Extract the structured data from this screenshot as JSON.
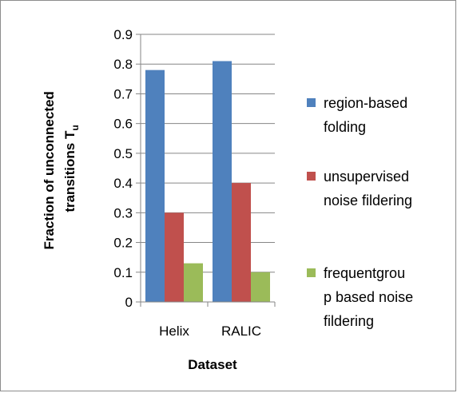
{
  "chart_data": {
    "type": "bar",
    "categories": [
      "Helix",
      "RALIC"
    ],
    "series": [
      {
        "name": "region-based folding",
        "legend_lines": [
          "region-based",
          "folding"
        ],
        "values": [
          0.78,
          0.81
        ],
        "color": "#4f81bd"
      },
      {
        "name": "unsupervised noise fildering",
        "legend_lines": [
          "unsupervised",
          "noise fildering"
        ],
        "values": [
          0.3,
          0.4
        ],
        "color": "#c0504d"
      },
      {
        "name": "frequentgroup based noise fildering",
        "legend_lines": [
          "frequentgrou",
          "p based noise",
          "fildering"
        ],
        "values": [
          0.13,
          0.1
        ],
        "color": "#9bbb59"
      }
    ],
    "title": "",
    "xlabel": "Dataset",
    "ylabel_lines": [
      "Fraction of unconnected",
      "transitions T"
    ],
    "ylabel_subscript": "u",
    "ylim": [
      0,
      0.9
    ],
    "yticks": [
      "0",
      "0.1",
      "0.2",
      "0.3",
      "0.4",
      "0.5",
      "0.6",
      "0.7",
      "0.8",
      "0.9"
    ],
    "grid": true,
    "legend_position": "right"
  }
}
